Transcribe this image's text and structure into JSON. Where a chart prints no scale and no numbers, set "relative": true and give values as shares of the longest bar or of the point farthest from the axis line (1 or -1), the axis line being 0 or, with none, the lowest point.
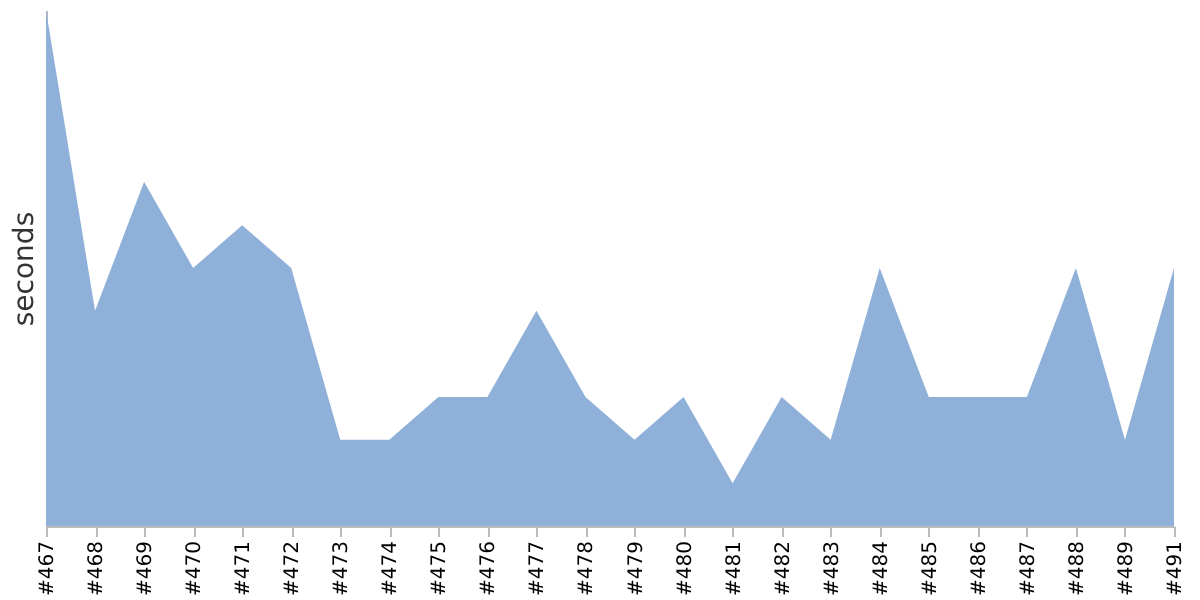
{
  "chart_data": {
    "type": "area",
    "ylabel": "seconds",
    "relative": true,
    "grid": false,
    "categories": [
      "#467",
      "#468",
      "#469",
      "#470",
      "#471",
      "#472",
      "#473",
      "#474",
      "#475",
      "#476",
      "#477",
      "#478",
      "#479",
      "#480",
      "#481",
      "#482",
      "#483",
      "#484",
      "#485",
      "#486",
      "#487",
      "#488",
      "#489",
      "#491"
    ],
    "series": [
      {
        "color": "#8fb1d9",
        "values": [
          1,
          0.417,
          0.667,
          0.5,
          0.583,
          0.5,
          0.167,
          0.167,
          0.25,
          0.25,
          0.417,
          0.25,
          0.167,
          0.25,
          0.083,
          0.25,
          0.167,
          0.5,
          0.25,
          0.25,
          0.25,
          0.5,
          0.167,
          0.5
        ]
      }
    ]
  }
}
